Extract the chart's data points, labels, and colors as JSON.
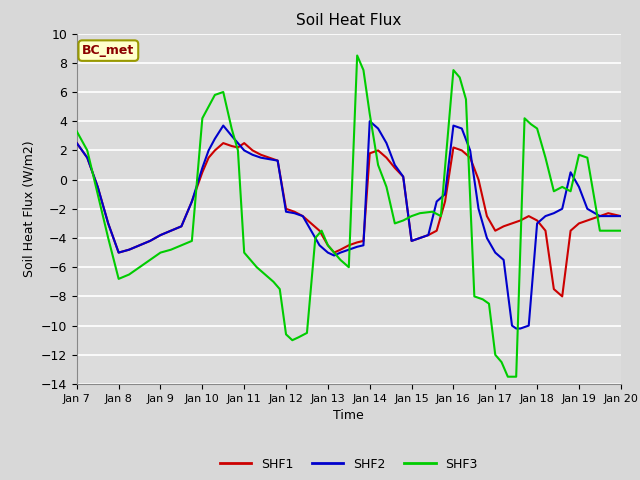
{
  "title": "Soil Heat Flux",
  "xlabel": "Time",
  "ylabel": "Soil Heat Flux (W/m2)",
  "ylim": [
    -14,
    10
  ],
  "yticks": [
    -14,
    -12,
    -10,
    -8,
    -6,
    -4,
    -2,
    0,
    2,
    4,
    6,
    8,
    10
  ],
  "annotation": "BC_met",
  "colors": {
    "SHF1": "#cc0000",
    "SHF2": "#0000cc",
    "SHF3": "#00cc00"
  },
  "fig_bg": "#d8d8d8",
  "plot_bg": "#dcdcdc",
  "x_dates": [
    "Jan 7",
    "Jan 8",
    "Jan 9",
    "Jan 10",
    "Jan 11",
    "Jan 12",
    "Jan 13",
    "Jan 14",
    "Jan 15",
    "Jan 16",
    "Jan 17",
    "Jan 18",
    "Jan 19",
    "Jan 20"
  ],
  "shf1_x": [
    0,
    0.25,
    0.5,
    0.75,
    1.0,
    1.25,
    1.5,
    1.75,
    2.0,
    2.25,
    2.5,
    2.75,
    3.0,
    3.15,
    3.3,
    3.5,
    3.7,
    3.85,
    4.0,
    4.2,
    4.4,
    4.6,
    4.8,
    5.0,
    5.2,
    5.4,
    5.6,
    5.8,
    6.0,
    6.15,
    6.3,
    6.5,
    6.7,
    6.85,
    7.0,
    7.2,
    7.4,
    7.6,
    7.8,
    8.0,
    8.2,
    8.4,
    8.6,
    8.8,
    9.0,
    9.2,
    9.4,
    9.6,
    9.8,
    10.0,
    10.2,
    10.4,
    10.6,
    10.8,
    11.0,
    11.2,
    11.4,
    11.6,
    11.8,
    12.0,
    12.2,
    12.5,
    12.7,
    13.0
  ],
  "shf1_y": [
    2.5,
    1.5,
    -0.5,
    -3.0,
    -5.0,
    -4.8,
    -4.5,
    -4.2,
    -3.8,
    -3.5,
    -3.2,
    -1.5,
    0.5,
    1.5,
    2.0,
    2.5,
    2.3,
    2.2,
    2.5,
    2.0,
    1.7,
    1.5,
    1.3,
    -2.0,
    -2.2,
    -2.5,
    -3.0,
    -3.5,
    -4.5,
    -5.0,
    -4.8,
    -4.5,
    -4.3,
    -4.2,
    1.8,
    2.0,
    1.5,
    0.8,
    0.2,
    -4.2,
    -4.0,
    -3.8,
    -3.5,
    -1.5,
    2.2,
    2.0,
    1.5,
    0.0,
    -2.5,
    -3.5,
    -3.2,
    -3.0,
    -2.8,
    -2.5,
    -2.8,
    -3.5,
    -7.5,
    -8.0,
    -3.5,
    -3.0,
    -2.8,
    -2.5,
    -2.3,
    -2.5
  ],
  "shf2_x": [
    0,
    0.25,
    0.5,
    0.75,
    1.0,
    1.25,
    1.5,
    1.75,
    2.0,
    2.25,
    2.5,
    2.75,
    3.0,
    3.15,
    3.3,
    3.5,
    3.7,
    3.85,
    4.0,
    4.2,
    4.4,
    4.6,
    4.8,
    5.0,
    5.2,
    5.4,
    5.6,
    5.8,
    6.0,
    6.15,
    6.3,
    6.5,
    6.7,
    6.85,
    7.0,
    7.2,
    7.4,
    7.6,
    7.8,
    8.0,
    8.2,
    8.4,
    8.6,
    8.8,
    9.0,
    9.2,
    9.4,
    9.6,
    9.8,
    10.0,
    10.2,
    10.4,
    10.5,
    10.6,
    10.8,
    11.0,
    11.2,
    11.4,
    11.6,
    11.8,
    12.0,
    12.2,
    12.5,
    12.7,
    13.0
  ],
  "shf2_y": [
    2.5,
    1.5,
    -0.5,
    -3.0,
    -5.0,
    -4.8,
    -4.5,
    -4.2,
    -3.8,
    -3.5,
    -3.2,
    -1.5,
    0.8,
    2.0,
    2.8,
    3.7,
    3.0,
    2.5,
    2.0,
    1.7,
    1.5,
    1.4,
    1.3,
    -2.2,
    -2.3,
    -2.5,
    -3.5,
    -4.5,
    -5.0,
    -5.2,
    -5.0,
    -4.8,
    -4.6,
    -4.5,
    4.0,
    3.5,
    2.5,
    1.0,
    0.2,
    -4.2,
    -4.0,
    -3.8,
    -1.5,
    -1.0,
    3.7,
    3.5,
    2.0,
    -2.0,
    -4.0,
    -5.0,
    -5.5,
    -10.0,
    -10.2,
    -10.2,
    -10.0,
    -3.0,
    -2.5,
    -2.3,
    -2.0,
    0.5,
    -0.5,
    -2.0,
    -2.5,
    -2.5,
    -2.5
  ],
  "shf3_x": [
    0,
    0.25,
    0.5,
    0.75,
    1.0,
    1.25,
    1.5,
    1.75,
    2.0,
    2.25,
    2.5,
    2.75,
    3.0,
    3.15,
    3.3,
    3.5,
    3.7,
    3.85,
    4.0,
    4.15,
    4.3,
    4.5,
    4.7,
    4.85,
    5.0,
    5.15,
    5.3,
    5.5,
    5.7,
    5.85,
    6.0,
    6.15,
    6.3,
    6.5,
    6.7,
    6.85,
    7.0,
    7.2,
    7.4,
    7.6,
    7.8,
    8.0,
    8.2,
    8.5,
    8.7,
    9.0,
    9.15,
    9.3,
    9.5,
    9.7,
    9.85,
    10.0,
    10.15,
    10.3,
    10.5,
    10.7,
    10.85,
    11.0,
    11.2,
    11.4,
    11.6,
    11.8,
    12.0,
    12.2,
    12.5,
    12.7,
    13.0
  ],
  "shf3_y": [
    3.3,
    2.0,
    -1.0,
    -4.0,
    -6.8,
    -6.5,
    -6.0,
    -5.5,
    -5.0,
    -4.8,
    -4.5,
    -4.2,
    4.2,
    5.0,
    5.8,
    6.0,
    3.5,
    2.0,
    -5.0,
    -5.5,
    -6.0,
    -6.5,
    -7.0,
    -7.5,
    -10.6,
    -11.0,
    -10.8,
    -10.5,
    -4.0,
    -3.5,
    -4.5,
    -5.0,
    -5.5,
    -6.0,
    8.5,
    7.5,
    4.5,
    1.0,
    -0.5,
    -3.0,
    -2.8,
    -2.5,
    -2.3,
    -2.2,
    -2.5,
    7.5,
    7.0,
    5.5,
    -8.0,
    -8.2,
    -8.5,
    -12.0,
    -12.5,
    -13.5,
    -13.5,
    4.2,
    3.8,
    3.5,
    1.5,
    -0.8,
    -0.5,
    -0.8,
    1.7,
    1.5,
    -3.5,
    -3.5,
    -3.5
  ]
}
